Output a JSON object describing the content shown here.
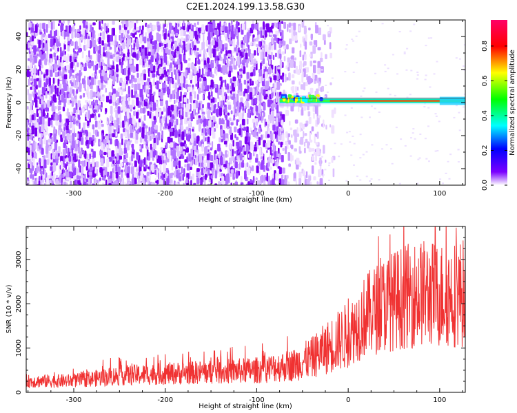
{
  "title": "C2E1.2024.199.13.58.G30",
  "chart_data": [
    {
      "type": "heatmap",
      "xlabel": "Height of straight line (km)",
      "ylabel": "Frequency (Hz)",
      "xlim": [
        -352,
        128
      ],
      "ylim": [
        -50,
        50
      ],
      "xticks": [
        -300,
        -200,
        -100,
        0,
        100
      ],
      "yticks": [
        -40,
        -20,
        0,
        20,
        40
      ],
      "colorbar": {
        "label": "Normalized spectral amplitude",
        "range": [
          0,
          0.95
        ],
        "ticks": [
          0.0,
          0.2,
          0.4,
          0.6,
          0.8
        ],
        "colormap": "rainbow"
      },
      "features": {
        "noise_region_x": [
          -352,
          -72
        ],
        "sparse_noise_x": [
          -72,
          -30
        ],
        "signal_line_frequency_hz": 1,
        "signal_line_x": [
          -75,
          128
        ],
        "peak_amplitude_x": [
          -20,
          100
        ]
      },
      "grid": false
    },
    {
      "type": "line",
      "xlabel": "Height of straight line (km)",
      "ylabel": "SNR (10 * v/v)",
      "xlim": [
        -352,
        128
      ],
      "ylim": [
        0,
        3750
      ],
      "xticks": [
        -300,
        -200,
        -100,
        0,
        100
      ],
      "yticks": [
        0,
        1000,
        2000,
        3000
      ],
      "series": [
        {
          "color": "#f03232",
          "trend_x": [
            -350,
            -300,
            -250,
            -200,
            -150,
            -100,
            -60,
            -40,
            -20,
            0,
            20,
            40,
            60,
            80,
            100,
            128
          ],
          "trend_y": [
            250,
            260,
            380,
            420,
            460,
            500,
            620,
            780,
            1050,
            1300,
            1750,
            2000,
            2150,
            2250,
            2200,
            2250
          ]
        }
      ],
      "grid": false
    }
  ]
}
